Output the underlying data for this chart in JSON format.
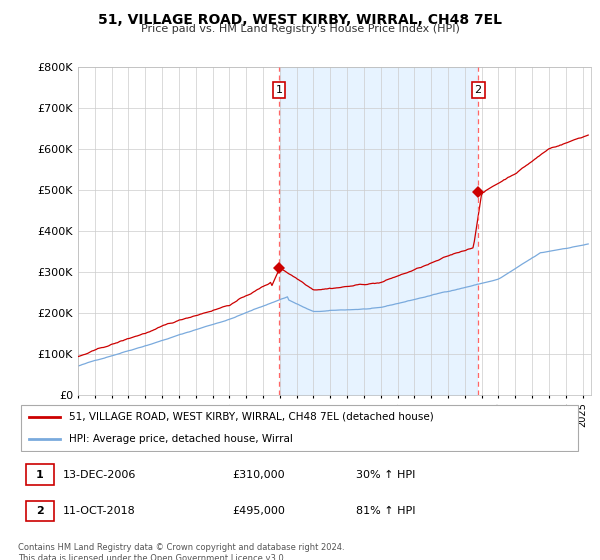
{
  "title": "51, VILLAGE ROAD, WEST KIRBY, WIRRAL, CH48 7EL",
  "subtitle": "Price paid vs. HM Land Registry's House Price Index (HPI)",
  "ylim": [
    0,
    800000
  ],
  "yticks": [
    0,
    100000,
    200000,
    300000,
    400000,
    500000,
    600000,
    700000,
    800000
  ],
  "ytick_labels": [
    "£0",
    "£100K",
    "£200K",
    "£300K",
    "£400K",
    "£500K",
    "£600K",
    "£700K",
    "£800K"
  ],
  "xlim_start": 1995.0,
  "xlim_end": 2025.5,
  "sale1_x": 2006.958,
  "sale1_y": 310000,
  "sale1_label": "1",
  "sale1_date": "13-DEC-2006",
  "sale1_price": "£310,000",
  "sale1_hpi": "30% ↑ HPI",
  "sale2_x": 2018.792,
  "sale2_y": 495000,
  "sale2_label": "2",
  "sale2_date": "11-OCT-2018",
  "sale2_price": "£495,000",
  "sale2_hpi": "81% ↑ HPI",
  "red_color": "#cc0000",
  "blue_color": "#7aaadd",
  "shade_color": "#ddeeff",
  "dashed_color": "#ff6666",
  "legend_label_red": "51, VILLAGE ROAD, WEST KIRBY, WIRRAL, CH48 7EL (detached house)",
  "legend_label_blue": "HPI: Average price, detached house, Wirral",
  "footer": "Contains HM Land Registry data © Crown copyright and database right 2024.\nThis data is licensed under the Open Government Licence v3.0."
}
